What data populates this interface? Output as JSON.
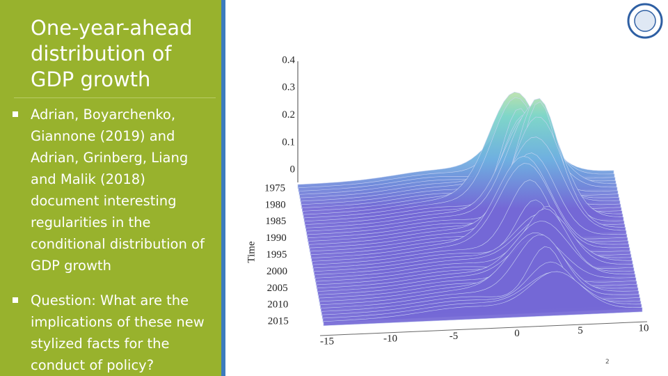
{
  "slide": {
    "title": "One-year-ahead distribution of GDP growth",
    "bullets": [
      "Adrian, Boyarchenko, Giannone (2019) and Adrian, Grinberg, Liang and Malik (2018) document interesting regularities in the conditional distribution of GDP growth",
      "Question: What are the implications of these new stylized facts for the conduct of policy?"
    ],
    "page_number": "2"
  },
  "figure": {
    "z_tick_labels": [
      "0.4",
      "0.3",
      "0.2",
      "0.1",
      "0"
    ],
    "time_axis_label": "Time",
    "time_tick_labels": [
      "1975",
      "1980",
      "1985",
      "1990",
      "1995",
      "2000",
      "2005",
      "2010",
      "2015"
    ],
    "x_tick_labels": [
      "-15",
      "-10",
      "-5",
      "0",
      "5",
      "10"
    ]
  }
}
